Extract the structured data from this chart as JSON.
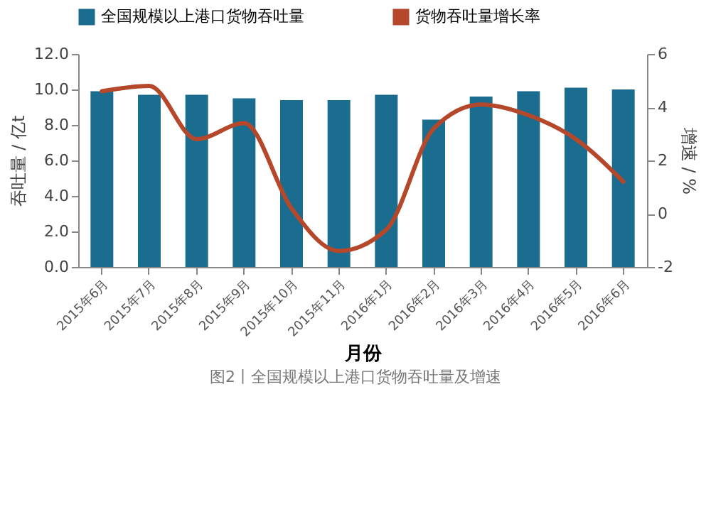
{
  "chart_data": {
    "type": "bar",
    "xlabel": "月份",
    "ylabel": "吞吐量 / 亿t",
    "y2label": "增速 / %",
    "categories": [
      "2015年6月",
      "2015年7月",
      "2015年8月",
      "2015年9月",
      "2015年10月",
      "2015年11月",
      "2016年1月",
      "2016年2月",
      "2016年3月",
      "2016年4月",
      "2016年5月",
      "2016年6月"
    ],
    "series": [
      {
        "name": "全国规模以上港口货物吞吐量",
        "color": "#1b6d8f",
        "values": [
          9.9,
          9.7,
          9.7,
          9.5,
          9.4,
          9.4,
          9.7,
          8.3,
          9.6,
          9.9,
          10.1,
          10.0
        ]
      },
      {
        "name": "货物吞吐量增长率",
        "type": "line",
        "axis": "y2",
        "color": "#b5482a",
        "values": [
          4.6,
          4.8,
          2.8,
          3.4,
          0.2,
          -1.4,
          -0.6,
          3.2,
          4.1,
          3.7,
          2.8,
          1.2
        ]
      }
    ],
    "ylim": [
      0,
      12
    ],
    "yticks": [
      {
        "value": 0,
        "label": "0.0"
      },
      {
        "value": 2,
        "label": "2.0"
      },
      {
        "value": 4,
        "label": "4.0"
      },
      {
        "value": 6,
        "label": "6.0"
      },
      {
        "value": 8,
        "label": "8.0"
      },
      {
        "value": 10,
        "label": "10.0"
      },
      {
        "value": 12,
        "label": "12.0"
      }
    ],
    "y2lim": [
      -2,
      6
    ],
    "y2ticks": [
      -2,
      0,
      2,
      4,
      6
    ],
    "legend": "top",
    "grid": false,
    "annotations": [
      "图2丨全国规模以上港口货物吞吐量及增速"
    ]
  }
}
